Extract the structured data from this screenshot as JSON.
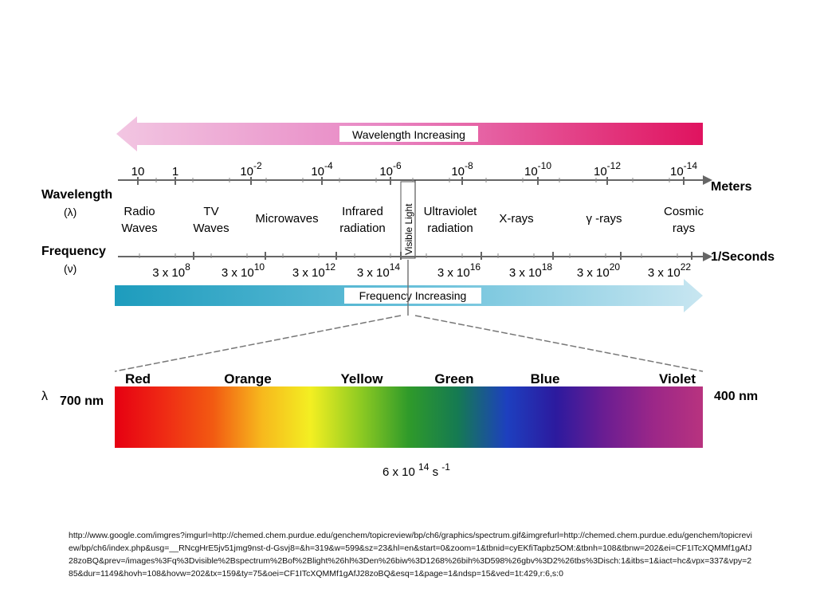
{
  "diagram": {
    "wavelength_arrow_label": "Wavelength Increasing",
    "frequency_arrow_label": "Frequency Increasing",
    "wavelength_axis": {
      "label": "Wavelength",
      "symbol": "(λ)",
      "unit": "Meters",
      "ticks": [
        {
          "base": "10",
          "exp": ""
        },
        {
          "base": "1",
          "exp": ""
        },
        {
          "base": "10",
          "exp": "-2"
        },
        {
          "base": "10",
          "exp": "-4"
        },
        {
          "base": "10",
          "exp": "-6"
        },
        {
          "base": "10",
          "exp": "-8"
        },
        {
          "base": "10",
          "exp": "-10"
        },
        {
          "base": "10",
          "exp": "-12"
        },
        {
          "base": "10",
          "exp": "-14"
        }
      ]
    },
    "frequency_axis": {
      "label": "Frequency",
      "symbol": "(ν)",
      "unit": "1/Seconds",
      "ticks": [
        {
          "base": "3 x 10",
          "exp": "8"
        },
        {
          "base": "3 x 10",
          "exp": "10"
        },
        {
          "base": "3 x 10",
          "exp": "12"
        },
        {
          "base": "3 x 10",
          "exp": "14"
        },
        {
          "base": "3 x 10",
          "exp": "16"
        },
        {
          "base": "3 x 10",
          "exp": "18"
        },
        {
          "base": "3 x 10",
          "exp": "20"
        },
        {
          "base": "3 x 10",
          "exp": "22"
        }
      ]
    },
    "regions": [
      {
        "line1": "Radio",
        "line2": "Waves"
      },
      {
        "line1": "TV",
        "line2": "Waves"
      },
      {
        "line1": "Microwaves",
        "line2": ""
      },
      {
        "line1": "Infrared",
        "line2": "radiation"
      },
      {
        "line1": "Ultraviolet",
        "line2": "radiation"
      },
      {
        "line1": "X-rays",
        "line2": ""
      },
      {
        "line1": "γ -rays",
        "line2": ""
      },
      {
        "line1": "Cosmic",
        "line2": "rays"
      }
    ],
    "visible_light_label": "Visible Light",
    "visible_spectrum": {
      "colors": [
        "Red",
        "Orange",
        "Yellow",
        "Green",
        "Blue",
        "Violet"
      ],
      "lambda_symbol": "λ",
      "left_value": "700 nm",
      "right_value": "400 nm",
      "frequency_base": "6 x 10",
      "frequency_exp": "14",
      "frequency_unit": "s",
      "frequency_unit_exp": "-1",
      "gradient": [
        "#e60012",
        "#ef2a14",
        "#f25a12",
        "#f7b81d",
        "#f3ef22",
        "#8fcb22",
        "#2f9a2a",
        "#157a52",
        "#1d3fbf",
        "#2c1a9e",
        "#6b1d92",
        "#9c2788",
        "#b8337f"
      ]
    }
  },
  "source_url": "http://www.google.com/imgres?imgurl=http://chemed.chem.purdue.edu/genchem/topicreview/bp/ch6/graphics/spectrum.gif&imgrefurl=http://chemed.chem.purdue.edu/genchem/topicreview/bp/ch6/index.php&usg=__RNcgHrE5jv51jmg9nst-d-Gsvj8=&h=319&w=599&sz=23&hl=en&start=0&zoom=1&tbnid=cyEKfiTapbz5OM:&tbnh=108&tbnw=202&ei=CF1ITcXQMMf1gAfJ28zoBQ&prev=/images%3Fq%3Dvisible%2Bspectrum%2Bof%2Blight%26hl%3Den%26biw%3D1268%26bih%3D598%26gbv%3D2%26tbs%3Disch:1&itbs=1&iact=hc&vpx=337&vpy=285&dur=1149&hovh=108&hovw=202&tx=159&ty=75&oei=CF1ITcXQMMf1gAfJ28zoBQ&esq=1&page=1&ndsp=15&ved=1t:429,r:6,s:0"
}
